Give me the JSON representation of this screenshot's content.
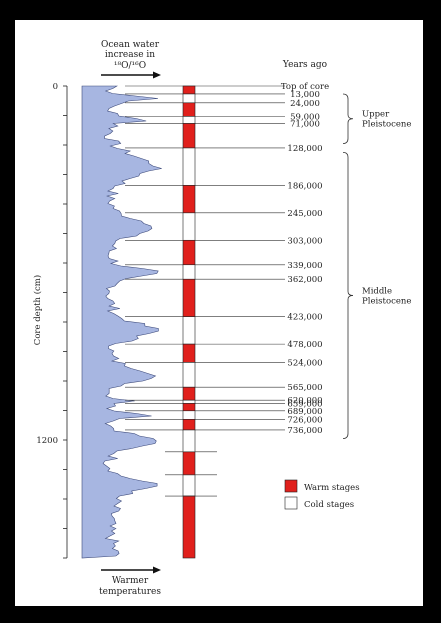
{
  "header": {
    "ocean_line1": "Ocean water",
    "ocean_line2": "increase in",
    "ratio_label": "¹⁸O/¹⁶O",
    "years_ago": "Years ago"
  },
  "footer": {
    "warmer_line1": "Warmer",
    "warmer_line2": "temperatures"
  },
  "axis": {
    "label": "Core depth (cm)",
    "ticks": [
      {
        "depth": 0,
        "label": "0"
      },
      {
        "depth": 1200,
        "label": "1200"
      }
    ]
  },
  "ages": [
    {
      "label": "Top of core",
      "depth": 0
    },
    {
      "label": "13,000",
      "depth": 27
    },
    {
      "label": "24,000",
      "depth": 57
    },
    {
      "label": "59,000",
      "depth": 103
    },
    {
      "label": "71,000",
      "depth": 127
    },
    {
      "label": "128,000",
      "depth": 210
    },
    {
      "label": "186,000",
      "depth": 337
    },
    {
      "label": "245,000",
      "depth": 430
    },
    {
      "label": "303,000",
      "depth": 523
    },
    {
      "label": "339,000",
      "depth": 606
    },
    {
      "label": "362,000",
      "depth": 655
    },
    {
      "label": "423,000",
      "depth": 782
    },
    {
      "label": "478,000",
      "depth": 875
    },
    {
      "label": "524,000",
      "depth": 937
    },
    {
      "label": "565,000",
      "depth": 1021
    },
    {
      "label": "620,000",
      "depth": 1065
    },
    {
      "label": "659,000",
      "depth": 1076
    },
    {
      "label": "689,000",
      "depth": 1101
    },
    {
      "label": "726,000",
      "depth": 1130
    },
    {
      "label": "736,000",
      "depth": 1166
    }
  ],
  "epochs": [
    {
      "line1": "Upper",
      "line2": "Pleistocene",
      "from_depth": 27,
      "to_depth": 195
    },
    {
      "line1": "Middle",
      "line2": "Pleistocene",
      "from_depth": 225,
      "to_depth": 1195
    }
  ],
  "stages": [
    {
      "from": 0,
      "to": 27,
      "type": "warm"
    },
    {
      "from": 27,
      "to": 57,
      "type": "cold"
    },
    {
      "from": 57,
      "to": 103,
      "type": "warm"
    },
    {
      "from": 103,
      "to": 127,
      "type": "cold"
    },
    {
      "from": 127,
      "to": 210,
      "type": "warm"
    },
    {
      "from": 210,
      "to": 337,
      "type": "cold"
    },
    {
      "from": 337,
      "to": 430,
      "type": "warm"
    },
    {
      "from": 430,
      "to": 523,
      "type": "cold"
    },
    {
      "from": 523,
      "to": 606,
      "type": "warm"
    },
    {
      "from": 606,
      "to": 655,
      "type": "cold"
    },
    {
      "from": 655,
      "to": 782,
      "type": "warm"
    },
    {
      "from": 782,
      "to": 875,
      "type": "cold"
    },
    {
      "from": 875,
      "to": 937,
      "type": "warm"
    },
    {
      "from": 937,
      "to": 1021,
      "type": "cold"
    },
    {
      "from": 1021,
      "to": 1065,
      "type": "warm"
    },
    {
      "from": 1065,
      "to": 1076,
      "type": "cold"
    },
    {
      "from": 1076,
      "to": 1101,
      "type": "warm"
    },
    {
      "from": 1101,
      "to": 1130,
      "type": "cold"
    },
    {
      "from": 1130,
      "to": 1166,
      "type": "warm"
    },
    {
      "from": 1166,
      "to": 1240,
      "type": "cold"
    },
    {
      "from": 1240,
      "to": 1318,
      "type": "warm"
    },
    {
      "from": 1318,
      "to": 1390,
      "type": "cold"
    },
    {
      "from": 1390,
      "to": 1610,
      "type": "warm"
    }
  ],
  "legend": {
    "warm_label": "Warm stages",
    "cold_label": "Cold stages"
  },
  "colors": {
    "warm": "#e0201c",
    "cold": "#ffffff",
    "curve_fill": "#a7b6e1",
    "curve_stroke": "#3d4a7a"
  }
}
